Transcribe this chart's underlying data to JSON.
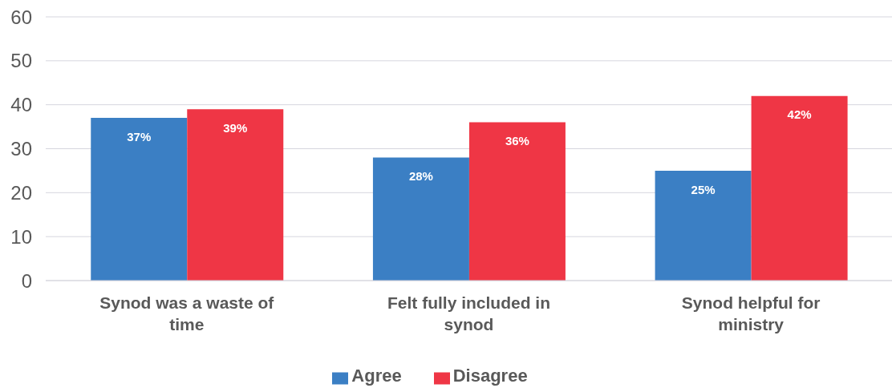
{
  "chart_data": {
    "type": "bar",
    "categories": [
      "Synod was a waste of time",
      "Felt fully included in synod",
      "Synod helpful for ministry"
    ],
    "series": [
      {
        "name": "Agree",
        "color": "#3b7fc4",
        "values": [
          37,
          28,
          25
        ],
        "value_labels": [
          "37%",
          "28%",
          "25%"
        ]
      },
      {
        "name": "Disagree",
        "color": "#ef3645",
        "values": [
          39,
          36,
          42
        ],
        "value_labels": [
          "39%",
          "36%",
          "42%"
        ]
      }
    ],
    "ylim": [
      0,
      60
    ],
    "yticks": [
      0,
      10,
      20,
      30,
      40,
      50,
      60
    ],
    "grid": "y",
    "legend": "bottom"
  }
}
